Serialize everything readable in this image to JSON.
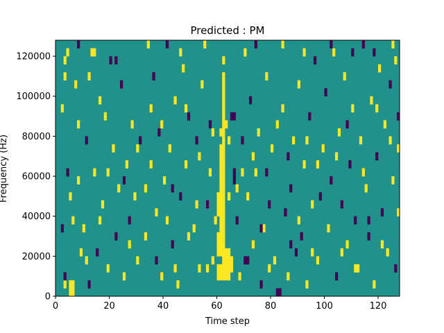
{
  "chart_data": {
    "type": "heatmap",
    "title": "Predicted : PM",
    "xlabel": "Time step",
    "ylabel": "Frequency (Hz)",
    "xlim": [
      0,
      128
    ],
    "ylim": [
      0,
      128000
    ],
    "xticks": [
      0,
      20,
      40,
      60,
      80,
      100,
      120
    ],
    "xtick_labels": [
      "0",
      "20",
      "40",
      "60",
      "80",
      "100",
      "120"
    ],
    "yticks": [
      0,
      20000,
      40000,
      60000,
      80000,
      100000,
      120000
    ],
    "ytick_labels": [
      "0",
      "20000",
      "40000",
      "60000",
      "80000",
      "100000",
      "120000"
    ],
    "grid": false,
    "colormap": "viridis",
    "colors": {
      "background": "#21918c",
      "high": "#fde725",
      "low": "#440154"
    },
    "time_bins": 128,
    "freq_bin_hz": 4000,
    "cells": [
      {
        "t": 3,
        "f": 1,
        "v": "high"
      },
      {
        "t": 3,
        "f": 29,
        "v": "high"
      },
      {
        "t": 3,
        "f": 27,
        "v": "high"
      },
      {
        "t": 2,
        "f": 23,
        "v": "high"
      },
      {
        "t": 2,
        "f": 8,
        "v": "low"
      },
      {
        "t": 4,
        "f": 30,
        "v": "high"
      },
      {
        "t": 5,
        "f": 0,
        "v": "high"
      },
      {
        "t": 5,
        "f": 1,
        "v": "high"
      },
      {
        "t": 6,
        "f": 0,
        "v": "high"
      },
      {
        "t": 6,
        "f": 1,
        "v": "high"
      },
      {
        "t": 5,
        "f": 12,
        "v": "high"
      },
      {
        "t": 4,
        "f": 15,
        "v": "low"
      },
      {
        "t": 8,
        "f": 21,
        "v": "high"
      },
      {
        "t": 7,
        "f": 26,
        "v": "high"
      },
      {
        "t": 6,
        "f": 9,
        "v": "high"
      },
      {
        "t": 3,
        "f": 2,
        "v": "low"
      },
      {
        "t": 8,
        "f": 31,
        "v": "low"
      },
      {
        "t": 9,
        "f": 5,
        "v": "high"
      },
      {
        "t": 10,
        "f": 8,
        "v": "high"
      },
      {
        "t": 12,
        "f": 1,
        "v": "low"
      },
      {
        "t": 12,
        "f": 27,
        "v": "high"
      },
      {
        "t": 13,
        "f": 30,
        "v": "high"
      },
      {
        "t": 11,
        "f": 19,
        "v": "low"
      },
      {
        "t": 14,
        "f": 15,
        "v": "high"
      },
      {
        "t": 16,
        "f": 24,
        "v": "high"
      },
      {
        "t": 15,
        "f": 5,
        "v": "low"
      },
      {
        "t": 17,
        "f": 11,
        "v": "high"
      },
      {
        "t": 18,
        "f": 22,
        "v": "high"
      },
      {
        "t": 19,
        "f": 3,
        "v": "high"
      },
      {
        "t": 20,
        "f": 29,
        "v": "low"
      },
      {
        "t": 21,
        "f": 18,
        "v": "high"
      },
      {
        "t": 22,
        "f": 7,
        "v": "low"
      },
      {
        "t": 23,
        "f": 13,
        "v": "high"
      },
      {
        "t": 24,
        "f": 26,
        "v": "low"
      },
      {
        "t": 25,
        "f": 2,
        "v": "high"
      },
      {
        "t": 26,
        "f": 16,
        "v": "high"
      },
      {
        "t": 27,
        "f": 9,
        "v": "low"
      },
      {
        "t": 28,
        "f": 21,
        "v": "high"
      },
      {
        "t": 30,
        "f": 4,
        "v": "high"
      },
      {
        "t": 31,
        "f": 19,
        "v": "low"
      },
      {
        "t": 33,
        "f": 13,
        "v": "high"
      },
      {
        "t": 35,
        "f": 23,
        "v": "high"
      },
      {
        "t": 36,
        "f": 27,
        "v": "low"
      },
      {
        "t": 37,
        "f": 10,
        "v": "high"
      },
      {
        "t": 38,
        "f": 20,
        "v": "low"
      },
      {
        "t": 39,
        "f": 2,
        "v": "high"
      },
      {
        "t": 40,
        "f": 14,
        "v": "high"
      },
      {
        "t": 41,
        "f": 31,
        "v": "low"
      },
      {
        "t": 42,
        "f": 18,
        "v": "high"
      },
      {
        "t": 43,
        "f": 6,
        "v": "low"
      },
      {
        "t": 44,
        "f": 24,
        "v": "high"
      },
      {
        "t": 45,
        "f": 1,
        "v": "high"
      },
      {
        "t": 46,
        "f": 12,
        "v": "low"
      },
      {
        "t": 47,
        "f": 28,
        "v": "high"
      },
      {
        "t": 48,
        "f": 16,
        "v": "high"
      },
      {
        "t": 49,
        "f": 22,
        "v": "low"
      },
      {
        "t": 51,
        "f": 8,
        "v": "high"
      },
      {
        "t": 52,
        "f": 19,
        "v": "low"
      },
      {
        "t": 53,
        "f": 3,
        "v": "high"
      },
      {
        "t": 54,
        "f": 26,
        "v": "high"
      },
      {
        "t": 56,
        "f": 11,
        "v": "low"
      },
      {
        "t": 57,
        "f": 15,
        "v": "high"
      },
      {
        "t": 58,
        "f": 4,
        "v": "high"
      },
      {
        "t": 58,
        "f": 20,
        "v": "high"
      },
      {
        "t": 59,
        "f": 9,
        "v": "high"
      },
      {
        "t": 60,
        "f": 2,
        "v": "high"
      },
      {
        "t": 60,
        "f": 3,
        "v": "high"
      },
      {
        "t": 60,
        "f": 5,
        "v": "high"
      },
      {
        "t": 60,
        "f": 6,
        "v": "high"
      },
      {
        "t": 60,
        "f": 7,
        "v": "high"
      },
      {
        "t": 60,
        "f": 10,
        "v": "high"
      },
      {
        "t": 60,
        "f": 11,
        "v": "high"
      },
      {
        "t": 60,
        "f": 12,
        "v": "high"
      },
      {
        "t": 61,
        "f": 2,
        "v": "high"
      },
      {
        "t": 61,
        "f": 3,
        "v": "high"
      },
      {
        "t": 61,
        "f": 5,
        "v": "high"
      },
      {
        "t": 61,
        "f": 6,
        "v": "high"
      },
      {
        "t": 61,
        "f": 7,
        "v": "high"
      },
      {
        "t": 61,
        "f": 8,
        "v": "high"
      },
      {
        "t": 61,
        "f": 9,
        "v": "high"
      },
      {
        "t": 61,
        "f": 10,
        "v": "high"
      },
      {
        "t": 61,
        "f": 11,
        "v": "high"
      },
      {
        "t": 61,
        "f": 12,
        "v": "high"
      },
      {
        "t": 61,
        "f": 13,
        "v": "high"
      },
      {
        "t": 61,
        "f": 14,
        "v": "high"
      },
      {
        "t": 61,
        "f": 15,
        "v": "high"
      },
      {
        "t": 61,
        "f": 16,
        "v": "high"
      },
      {
        "t": 61,
        "f": 17,
        "v": "high"
      },
      {
        "t": 61,
        "f": 18,
        "v": "high"
      },
      {
        "t": 61,
        "f": 20,
        "v": "high"
      },
      {
        "t": 62,
        "f": 2,
        "v": "high"
      },
      {
        "t": 62,
        "f": 3,
        "v": "high"
      },
      {
        "t": 62,
        "f": 4,
        "v": "high"
      },
      {
        "t": 62,
        "f": 5,
        "v": "high"
      },
      {
        "t": 62,
        "f": 6,
        "v": "high"
      },
      {
        "t": 62,
        "f": 7,
        "v": "high"
      },
      {
        "t": 62,
        "f": 8,
        "v": "high"
      },
      {
        "t": 62,
        "f": 9,
        "v": "high"
      },
      {
        "t": 62,
        "f": 10,
        "v": "high"
      },
      {
        "t": 62,
        "f": 11,
        "v": "high"
      },
      {
        "t": 62,
        "f": 12,
        "v": "high"
      },
      {
        "t": 62,
        "f": 13,
        "v": "high"
      },
      {
        "t": 62,
        "f": 14,
        "v": "high"
      },
      {
        "t": 62,
        "f": 15,
        "v": "high"
      },
      {
        "t": 62,
        "f": 16,
        "v": "high"
      },
      {
        "t": 62,
        "f": 17,
        "v": "high"
      },
      {
        "t": 62,
        "f": 18,
        "v": "high"
      },
      {
        "t": 62,
        "f": 19,
        "v": "high"
      },
      {
        "t": 62,
        "f": 20,
        "v": "high"
      },
      {
        "t": 62,
        "f": 21,
        "v": "high"
      },
      {
        "t": 62,
        "f": 22,
        "v": "high"
      },
      {
        "t": 62,
        "f": 23,
        "v": "high"
      },
      {
        "t": 62,
        "f": 24,
        "v": "high"
      },
      {
        "t": 62,
        "f": 25,
        "v": "high"
      },
      {
        "t": 62,
        "f": 26,
        "v": "high"
      },
      {
        "t": 62,
        "f": 27,
        "v": "high"
      },
      {
        "t": 63,
        "f": 2,
        "v": "high"
      },
      {
        "t": 63,
        "f": 3,
        "v": "high"
      },
      {
        "t": 63,
        "f": 4,
        "v": "high"
      },
      {
        "t": 63,
        "f": 5,
        "v": "high"
      },
      {
        "t": 63,
        "f": 21,
        "v": "high"
      },
      {
        "t": 64,
        "f": 2,
        "v": "high"
      },
      {
        "t": 64,
        "f": 3,
        "v": "high"
      },
      {
        "t": 64,
        "f": 4,
        "v": "high"
      },
      {
        "t": 64,
        "f": 5,
        "v": "high"
      },
      {
        "t": 64,
        "f": 12,
        "v": "high"
      },
      {
        "t": 64,
        "f": 19,
        "v": "high"
      },
      {
        "t": 65,
        "f": 3,
        "v": "high"
      },
      {
        "t": 65,
        "f": 4,
        "v": "high"
      },
      {
        "t": 65,
        "f": 22,
        "v": "low"
      },
      {
        "t": 66,
        "f": 15,
        "v": "low"
      },
      {
        "t": 66,
        "f": 14,
        "v": "low"
      },
      {
        "t": 66,
        "f": 22,
        "v": "low"
      },
      {
        "t": 67,
        "f": 9,
        "v": "low"
      },
      {
        "t": 68,
        "f": 2,
        "v": "high"
      },
      {
        "t": 69,
        "f": 19,
        "v": "low"
      },
      {
        "t": 70,
        "f": 4,
        "v": "low"
      },
      {
        "t": 70,
        "f": 30,
        "v": "high"
      },
      {
        "t": 71,
        "f": 12,
        "v": "high"
      },
      {
        "t": 71,
        "f": 4,
        "v": "low"
      },
      {
        "t": 72,
        "f": 24,
        "v": "low"
      },
      {
        "t": 73,
        "f": 6,
        "v": "high"
      },
      {
        "t": 74,
        "f": 15,
        "v": "high"
      },
      {
        "t": 75,
        "f": 20,
        "v": "high"
      },
      {
        "t": 76,
        "f": 1,
        "v": "low"
      },
      {
        "t": 77,
        "f": 8,
        "v": "high"
      },
      {
        "t": 78,
        "f": 27,
        "v": "high"
      },
      {
        "t": 79,
        "f": 11,
        "v": "low"
      },
      {
        "t": 80,
        "f": 18,
        "v": "high"
      },
      {
        "t": 81,
        "f": 4,
        "v": "high"
      },
      {
        "t": 82,
        "f": 0,
        "v": "low"
      },
      {
        "t": 83,
        "f": 0,
        "v": "low"
      },
      {
        "t": 84,
        "f": 23,
        "v": "high"
      },
      {
        "t": 85,
        "f": 10,
        "v": "low"
      },
      {
        "t": 86,
        "f": 2,
        "v": "high"
      },
      {
        "t": 87,
        "f": 13,
        "v": "low"
      },
      {
        "t": 88,
        "f": 19,
        "v": "high"
      },
      {
        "t": 89,
        "f": 5,
        "v": "low"
      },
      {
        "t": 90,
        "f": 26,
        "v": "high"
      },
      {
        "t": 91,
        "f": 7,
        "v": "low"
      },
      {
        "t": 92,
        "f": 16,
        "v": "high"
      },
      {
        "t": 93,
        "f": 1,
        "v": "high"
      },
      {
        "t": 94,
        "f": 22,
        "v": "low"
      },
      {
        "t": 95,
        "f": 11,
        "v": "high"
      },
      {
        "t": 96,
        "f": 29,
        "v": "low"
      },
      {
        "t": 97,
        "f": 4,
        "v": "high"
      },
      {
        "t": 99,
        "f": 18,
        "v": "high"
      },
      {
        "t": 100,
        "f": 25,
        "v": "low"
      },
      {
        "t": 101,
        "f": 8,
        "v": "high"
      },
      {
        "t": 102,
        "f": 14,
        "v": "low"
      },
      {
        "t": 103,
        "f": 30,
        "v": "high"
      },
      {
        "t": 104,
        "f": 2,
        "v": "low"
      },
      {
        "t": 105,
        "f": 20,
        "v": "high"
      },
      {
        "t": 106,
        "f": 11,
        "v": "low"
      },
      {
        "t": 107,
        "f": 27,
        "v": "high"
      },
      {
        "t": 108,
        "f": 6,
        "v": "high"
      },
      {
        "t": 109,
        "f": 16,
        "v": "low"
      },
      {
        "t": 110,
        "f": 23,
        "v": "high"
      },
      {
        "t": 111,
        "f": 9,
        "v": "low"
      },
      {
        "t": 112,
        "f": 3,
        "v": "high"
      },
      {
        "t": 113,
        "f": 19,
        "v": "high"
      },
      {
        "t": 114,
        "f": 31,
        "v": "low"
      },
      {
        "t": 115,
        "f": 13,
        "v": "high"
      },
      {
        "t": 116,
        "f": 7,
        "v": "low"
      },
      {
        "t": 117,
        "f": 24,
        "v": "high"
      },
      {
        "t": 118,
        "f": 1,
        "v": "high"
      },
      {
        "t": 119,
        "f": 17,
        "v": "low"
      },
      {
        "t": 120,
        "f": 28,
        "v": "high"
      },
      {
        "t": 121,
        "f": 10,
        "v": "low"
      },
      {
        "t": 122,
        "f": 21,
        "v": "high"
      },
      {
        "t": 123,
        "f": 5,
        "v": "high"
      },
      {
        "t": 124,
        "f": 26,
        "v": "low"
      },
      {
        "t": 125,
        "f": 14,
        "v": "high"
      },
      {
        "t": 126,
        "f": 29,
        "v": "high"
      },
      {
        "t": 127,
        "f": 18,
        "v": "high"
      },
      {
        "t": 127,
        "f": 10,
        "v": "high"
      },
      {
        "t": 127,
        "f": 22,
        "v": "low"
      },
      {
        "t": 126,
        "f": 3,
        "v": "low"
      },
      {
        "t": 125,
        "f": 31,
        "v": "high"
      },
      {
        "t": 118,
        "f": 30,
        "v": "low"
      },
      {
        "t": 110,
        "f": 30,
        "v": "low"
      },
      {
        "t": 102,
        "f": 31,
        "v": "low"
      },
      {
        "t": 92,
        "f": 30,
        "v": "high"
      },
      {
        "t": 84,
        "f": 31,
        "v": "high"
      },
      {
        "t": 74,
        "f": 31,
        "v": "low"
      },
      {
        "t": 62,
        "f": 29,
        "v": "high"
      },
      {
        "t": 55,
        "f": 31,
        "v": "high"
      },
      {
        "t": 46,
        "f": 30,
        "v": "high"
      },
      {
        "t": 34,
        "f": 31,
        "v": "high"
      },
      {
        "t": 22,
        "f": 29,
        "v": "low"
      },
      {
        "t": 14,
        "f": 30,
        "v": "high"
      },
      {
        "t": 27,
        "f": 6,
        "v": "high"
      },
      {
        "t": 29,
        "f": 12,
        "v": "high"
      },
      {
        "t": 33,
        "f": 7,
        "v": "high"
      },
      {
        "t": 37,
        "f": 4,
        "v": "low"
      },
      {
        "t": 41,
        "f": 9,
        "v": "high"
      },
      {
        "t": 44,
        "f": 3,
        "v": "high"
      },
      {
        "t": 49,
        "f": 7,
        "v": "high"
      },
      {
        "t": 52,
        "f": 11,
        "v": "high"
      },
      {
        "t": 56,
        "f": 3,
        "v": "high"
      },
      {
        "t": 76,
        "f": 8,
        "v": "low"
      },
      {
        "t": 79,
        "f": 3,
        "v": "high"
      },
      {
        "t": 87,
        "f": 6,
        "v": "low"
      },
      {
        "t": 90,
        "f": 9,
        "v": "high"
      },
      {
        "t": 95,
        "f": 5,
        "v": "high"
      },
      {
        "t": 98,
        "f": 12,
        "v": "low"
      },
      {
        "t": 106,
        "f": 5,
        "v": "high"
      },
      {
        "t": 111,
        "f": 3,
        "v": "high"
      },
      {
        "t": 116,
        "f": 9,
        "v": "low"
      },
      {
        "t": 121,
        "f": 6,
        "v": "high"
      },
      {
        "t": 8,
        "f": 14,
        "v": "high"
      },
      {
        "t": 11,
        "f": 4,
        "v": "high"
      },
      {
        "t": 16,
        "f": 9,
        "v": "high"
      },
      {
        "t": 19,
        "f": 15,
        "v": "high"
      },
      {
        "t": 25,
        "f": 14,
        "v": "low"
      },
      {
        "t": 30,
        "f": 18,
        "v": "high"
      },
      {
        "t": 35,
        "f": 16,
        "v": "high"
      },
      {
        "t": 39,
        "f": 21,
        "v": "high"
      },
      {
        "t": 43,
        "f": 13,
        "v": "low"
      },
      {
        "t": 48,
        "f": 23,
        "v": "high"
      },
      {
        "t": 53,
        "f": 17,
        "v": "high"
      },
      {
        "t": 57,
        "f": 21,
        "v": "low"
      },
      {
        "t": 67,
        "f": 13,
        "v": "high"
      },
      {
        "t": 69,
        "f": 15,
        "v": "high"
      },
      {
        "t": 73,
        "f": 17,
        "v": "high"
      },
      {
        "t": 78,
        "f": 15,
        "v": "low"
      },
      {
        "t": 82,
        "f": 21,
        "v": "high"
      },
      {
        "t": 86,
        "f": 17,
        "v": "low"
      },
      {
        "t": 93,
        "f": 19,
        "v": "high"
      },
      {
        "t": 97,
        "f": 16,
        "v": "high"
      },
      {
        "t": 104,
        "f": 17,
        "v": "high"
      },
      {
        "t": 108,
        "f": 21,
        "v": "low"
      },
      {
        "t": 114,
        "f": 15,
        "v": "high"
      },
      {
        "t": 119,
        "f": 23,
        "v": "high"
      },
      {
        "t": 124,
        "f": 19,
        "v": "high"
      }
    ]
  }
}
